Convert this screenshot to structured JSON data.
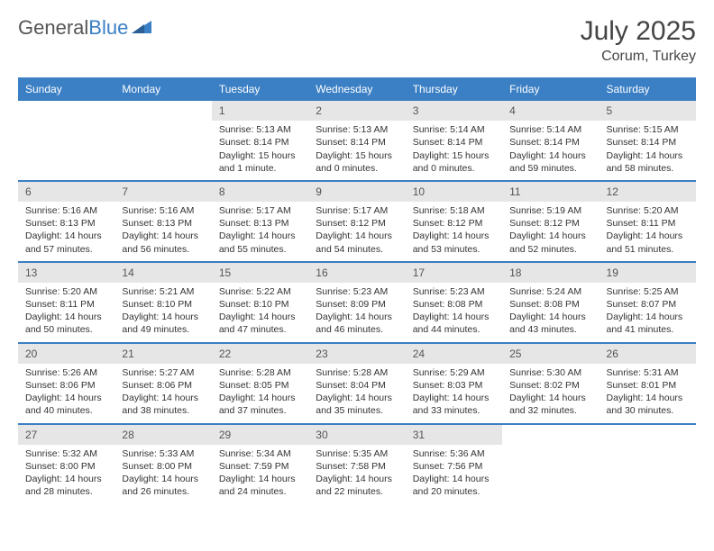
{
  "brand": {
    "part1": "General",
    "part2": "Blue"
  },
  "title": "July 2025",
  "location": "Corum, Turkey",
  "colors": {
    "header_bg": "#3b7fc4",
    "header_fg": "#ffffff",
    "daynum_bg": "#e6e6e6",
    "daynum_fg": "#555555",
    "row_border": "#3b7fc4",
    "page_bg": "#ffffff",
    "text": "#333333"
  },
  "typography": {
    "title_fontsize": 30,
    "location_fontsize": 16,
    "header_fontsize": 12,
    "cell_fontsize": 10.5,
    "daynum_fontsize": 12
  },
  "day_headers": [
    "Sunday",
    "Monday",
    "Tuesday",
    "Wednesday",
    "Thursday",
    "Friday",
    "Saturday"
  ],
  "weeks": [
    [
      null,
      null,
      {
        "n": "1",
        "sr": "Sunrise: 5:13 AM",
        "ss": "Sunset: 8:14 PM",
        "dl": "Daylight: 15 hours and 1 minute."
      },
      {
        "n": "2",
        "sr": "Sunrise: 5:13 AM",
        "ss": "Sunset: 8:14 PM",
        "dl": "Daylight: 15 hours and 0 minutes."
      },
      {
        "n": "3",
        "sr": "Sunrise: 5:14 AM",
        "ss": "Sunset: 8:14 PM",
        "dl": "Daylight: 15 hours and 0 minutes."
      },
      {
        "n": "4",
        "sr": "Sunrise: 5:14 AM",
        "ss": "Sunset: 8:14 PM",
        "dl": "Daylight: 14 hours and 59 minutes."
      },
      {
        "n": "5",
        "sr": "Sunrise: 5:15 AM",
        "ss": "Sunset: 8:14 PM",
        "dl": "Daylight: 14 hours and 58 minutes."
      }
    ],
    [
      {
        "n": "6",
        "sr": "Sunrise: 5:16 AM",
        "ss": "Sunset: 8:13 PM",
        "dl": "Daylight: 14 hours and 57 minutes."
      },
      {
        "n": "7",
        "sr": "Sunrise: 5:16 AM",
        "ss": "Sunset: 8:13 PM",
        "dl": "Daylight: 14 hours and 56 minutes."
      },
      {
        "n": "8",
        "sr": "Sunrise: 5:17 AM",
        "ss": "Sunset: 8:13 PM",
        "dl": "Daylight: 14 hours and 55 minutes."
      },
      {
        "n": "9",
        "sr": "Sunrise: 5:17 AM",
        "ss": "Sunset: 8:12 PM",
        "dl": "Daylight: 14 hours and 54 minutes."
      },
      {
        "n": "10",
        "sr": "Sunrise: 5:18 AM",
        "ss": "Sunset: 8:12 PM",
        "dl": "Daylight: 14 hours and 53 minutes."
      },
      {
        "n": "11",
        "sr": "Sunrise: 5:19 AM",
        "ss": "Sunset: 8:12 PM",
        "dl": "Daylight: 14 hours and 52 minutes."
      },
      {
        "n": "12",
        "sr": "Sunrise: 5:20 AM",
        "ss": "Sunset: 8:11 PM",
        "dl": "Daylight: 14 hours and 51 minutes."
      }
    ],
    [
      {
        "n": "13",
        "sr": "Sunrise: 5:20 AM",
        "ss": "Sunset: 8:11 PM",
        "dl": "Daylight: 14 hours and 50 minutes."
      },
      {
        "n": "14",
        "sr": "Sunrise: 5:21 AM",
        "ss": "Sunset: 8:10 PM",
        "dl": "Daylight: 14 hours and 49 minutes."
      },
      {
        "n": "15",
        "sr": "Sunrise: 5:22 AM",
        "ss": "Sunset: 8:10 PM",
        "dl": "Daylight: 14 hours and 47 minutes."
      },
      {
        "n": "16",
        "sr": "Sunrise: 5:23 AM",
        "ss": "Sunset: 8:09 PM",
        "dl": "Daylight: 14 hours and 46 minutes."
      },
      {
        "n": "17",
        "sr": "Sunrise: 5:23 AM",
        "ss": "Sunset: 8:08 PM",
        "dl": "Daylight: 14 hours and 44 minutes."
      },
      {
        "n": "18",
        "sr": "Sunrise: 5:24 AM",
        "ss": "Sunset: 8:08 PM",
        "dl": "Daylight: 14 hours and 43 minutes."
      },
      {
        "n": "19",
        "sr": "Sunrise: 5:25 AM",
        "ss": "Sunset: 8:07 PM",
        "dl": "Daylight: 14 hours and 41 minutes."
      }
    ],
    [
      {
        "n": "20",
        "sr": "Sunrise: 5:26 AM",
        "ss": "Sunset: 8:06 PM",
        "dl": "Daylight: 14 hours and 40 minutes."
      },
      {
        "n": "21",
        "sr": "Sunrise: 5:27 AM",
        "ss": "Sunset: 8:06 PM",
        "dl": "Daylight: 14 hours and 38 minutes."
      },
      {
        "n": "22",
        "sr": "Sunrise: 5:28 AM",
        "ss": "Sunset: 8:05 PM",
        "dl": "Daylight: 14 hours and 37 minutes."
      },
      {
        "n": "23",
        "sr": "Sunrise: 5:28 AM",
        "ss": "Sunset: 8:04 PM",
        "dl": "Daylight: 14 hours and 35 minutes."
      },
      {
        "n": "24",
        "sr": "Sunrise: 5:29 AM",
        "ss": "Sunset: 8:03 PM",
        "dl": "Daylight: 14 hours and 33 minutes."
      },
      {
        "n": "25",
        "sr": "Sunrise: 5:30 AM",
        "ss": "Sunset: 8:02 PM",
        "dl": "Daylight: 14 hours and 32 minutes."
      },
      {
        "n": "26",
        "sr": "Sunrise: 5:31 AM",
        "ss": "Sunset: 8:01 PM",
        "dl": "Daylight: 14 hours and 30 minutes."
      }
    ],
    [
      {
        "n": "27",
        "sr": "Sunrise: 5:32 AM",
        "ss": "Sunset: 8:00 PM",
        "dl": "Daylight: 14 hours and 28 minutes."
      },
      {
        "n": "28",
        "sr": "Sunrise: 5:33 AM",
        "ss": "Sunset: 8:00 PM",
        "dl": "Daylight: 14 hours and 26 minutes."
      },
      {
        "n": "29",
        "sr": "Sunrise: 5:34 AM",
        "ss": "Sunset: 7:59 PM",
        "dl": "Daylight: 14 hours and 24 minutes."
      },
      {
        "n": "30",
        "sr": "Sunrise: 5:35 AM",
        "ss": "Sunset: 7:58 PM",
        "dl": "Daylight: 14 hours and 22 minutes."
      },
      {
        "n": "31",
        "sr": "Sunrise: 5:36 AM",
        "ss": "Sunset: 7:56 PM",
        "dl": "Daylight: 14 hours and 20 minutes."
      },
      null,
      null
    ]
  ]
}
